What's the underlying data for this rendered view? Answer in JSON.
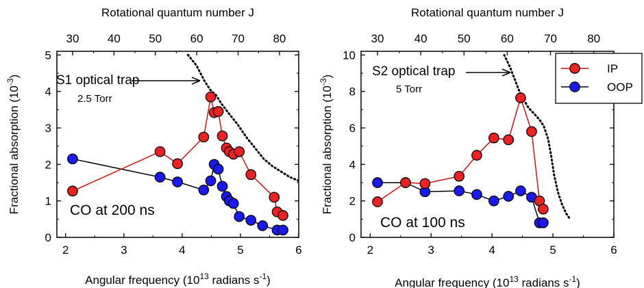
{
  "chart_data": [
    {
      "type": "scatter",
      "xlabel": "Angular frequency (10",
      "xlabel_sup": "13",
      "xlabel_tail": " radians s",
      "xlabel_sup2": "-1",
      "xlabel_end": ")",
      "ylabel": "Fractional absorption (10",
      "ylabel_sup": "-3",
      "ylabel_end": ")",
      "top_xlabel": "Rotational quantum number J",
      "xlim": [
        1.85,
        6
      ],
      "ylim": [
        0,
        5.1
      ],
      "xticks": [
        2,
        3,
        4,
        5,
        6
      ],
      "yticks": [
        0,
        1,
        2,
        3,
        4,
        5
      ],
      "top_ticks": [
        {
          "label": "30",
          "x": 2.12
        },
        {
          "label": "40",
          "x": 2.83
        },
        {
          "label": "50",
          "x": 3.54
        },
        {
          "label": "60",
          "x": 4.25
        },
        {
          "label": "70",
          "x": 4.96
        },
        {
          "label": "80",
          "x": 5.67
        }
      ],
      "top_minor_ticks": [
        2.48,
        3.19,
        3.9,
        4.6,
        5.31
      ],
      "grid": false,
      "series": [
        {
          "key": "IP",
          "color": "#cc1111",
          "marker_fill": "#ee2222",
          "x": [
            2.12,
            3.62,
            3.92,
            4.37,
            4.49,
            4.55,
            4.62,
            4.69,
            4.76,
            4.81,
            4.88,
            4.98,
            5.18,
            5.58,
            5.63,
            5.73
          ],
          "y": [
            1.27,
            2.35,
            2.02,
            2.75,
            3.85,
            3.42,
            3.45,
            2.78,
            2.45,
            2.35,
            2.28,
            2.35,
            1.72,
            1.1,
            0.7,
            0.6
          ]
        },
        {
          "key": "OOP",
          "color": "#000000",
          "marker_fill": "#1a1aee",
          "x": [
            2.12,
            3.62,
            3.92,
            4.37,
            4.49,
            4.55,
            4.62,
            4.69,
            4.76,
            4.81,
            4.88,
            4.98,
            5.18,
            5.38,
            5.63,
            5.73
          ],
          "y": [
            2.15,
            1.65,
            1.52,
            1.3,
            1.55,
            2.0,
            1.87,
            1.4,
            1.12,
            1.0,
            0.93,
            0.57,
            0.47,
            0.32,
            0.2,
            0.2
          ]
        },
        {
          "key": "trap",
          "style": "dotted",
          "color": "#000000",
          "x": [
            4.1,
            4.25,
            4.38,
            4.48,
            4.58,
            4.68,
            4.8,
            4.95,
            5.1,
            5.25,
            5.4,
            5.55,
            5.7,
            5.85,
            6.0
          ],
          "y": [
            5.0,
            4.7,
            4.3,
            4.05,
            3.9,
            3.65,
            3.4,
            3.1,
            2.75,
            2.45,
            2.15,
            1.95,
            1.8,
            1.65,
            1.55
          ]
        }
      ],
      "annotations": {
        "trap_label": "S1 optical trap",
        "pressure": "2.5 Torr",
        "condition": "CO at 200 ns"
      }
    },
    {
      "type": "scatter",
      "xlabel": "Angular frequency (10",
      "xlabel_sup": "13",
      "xlabel_tail": " radians s",
      "xlabel_sup2": "-1",
      "xlabel_end": ")",
      "ylabel": "Fractional absorption (10",
      "ylabel_sup": "-3",
      "ylabel_end": ")",
      "top_xlabel": "Rotational quantum number J",
      "xlim": [
        1.85,
        6
      ],
      "ylim": [
        0,
        10.2
      ],
      "xticks": [
        2,
        3,
        4,
        5,
        6
      ],
      "yticks": [
        0,
        2,
        4,
        6,
        8,
        10
      ],
      "top_ticks": [
        {
          "label": "30",
          "x": 2.12
        },
        {
          "label": "40",
          "x": 2.83
        },
        {
          "label": "50",
          "x": 3.54
        },
        {
          "label": "60",
          "x": 4.25
        },
        {
          "label": "70",
          "x": 4.96
        },
        {
          "label": "80",
          "x": 5.67
        }
      ],
      "top_minor_ticks": [
        2.48,
        3.19,
        3.9,
        4.6,
        5.31
      ],
      "grid": false,
      "legend": {
        "placement": "top-right",
        "entries": [
          "IP",
          "OOP"
        ]
      },
      "series": [
        {
          "name": "IP",
          "color": "#cc1111",
          "marker_fill": "#ee2222",
          "x": [
            2.12,
            2.58,
            2.9,
            3.46,
            3.75,
            4.03,
            4.27,
            4.47,
            4.65,
            4.78,
            4.84
          ],
          "y": [
            1.95,
            3.0,
            2.95,
            3.35,
            4.5,
            5.45,
            5.35,
            7.65,
            5.8,
            2.0,
            1.55
          ]
        },
        {
          "name": "OOP",
          "color": "#000000",
          "marker_fill": "#1a1aee",
          "x": [
            2.12,
            2.58,
            2.9,
            3.46,
            3.75,
            4.03,
            4.27,
            4.47,
            4.65,
            4.78,
            4.84
          ],
          "y": [
            3.0,
            3.0,
            2.5,
            2.55,
            2.35,
            2.0,
            2.25,
            2.55,
            2.2,
            0.8,
            0.8
          ]
        },
        {
          "key": "trap",
          "style": "dotted",
          "color": "#000000",
          "x": [
            4.2,
            4.3,
            4.38,
            4.45,
            4.52,
            4.6,
            4.7,
            4.78,
            4.85,
            4.92,
            4.97,
            5.02,
            5.08,
            5.15,
            5.22,
            5.28
          ],
          "y": [
            10.0,
            9.3,
            8.6,
            8.0,
            7.55,
            7.1,
            6.75,
            6.45,
            6.1,
            5.4,
            4.5,
            3.4,
            2.5,
            1.8,
            1.3,
            1.0
          ]
        }
      ],
      "annotations": {
        "trap_label": "S2 optical trap",
        "pressure": "5 Torr",
        "condition": "CO at 100 ns"
      }
    }
  ]
}
